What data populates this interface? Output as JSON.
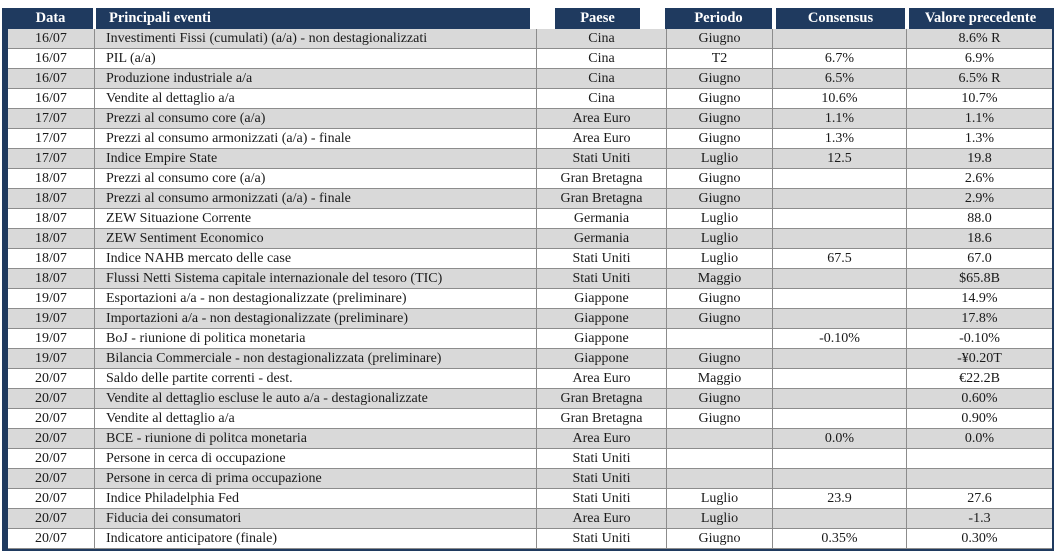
{
  "colors": {
    "header_bg": "#1F3A5F",
    "header_text": "#FFFFFF",
    "row_alt_bg": "#D9D9D9",
    "row_bg": "#FFFFFF",
    "grid_border": "#8C8C8C",
    "text": "#1A1A1A"
  },
  "table": {
    "columns": [
      "Data",
      "Principali eventi",
      "Paese",
      "Periodo",
      "Consensus",
      "Valore precedente"
    ],
    "rows": [
      {
        "date": "16/07",
        "event": "Investimenti Fissi (cumulati) (a/a) - non destagionalizzati",
        "country": "Cina",
        "period": "Giugno",
        "consensus": "",
        "previous": "8.6% R"
      },
      {
        "date": "16/07",
        "event": "PIL (a/a)",
        "country": "Cina",
        "period": "T2",
        "consensus": "6.7%",
        "previous": "6.9%"
      },
      {
        "date": "16/07",
        "event": "Produzione industriale a/a",
        "country": "Cina",
        "period": "Giugno",
        "consensus": "6.5%",
        "previous": "6.5% R"
      },
      {
        "date": "16/07",
        "event": "Vendite al dettaglio a/a",
        "country": "Cina",
        "period": "Giugno",
        "consensus": "10.6%",
        "previous": "10.7%"
      },
      {
        "date": "17/07",
        "event": "Prezzi al consumo core  (a/a)",
        "country": "Area Euro",
        "period": "Giugno",
        "consensus": "1.1%",
        "previous": "1.1%"
      },
      {
        "date": "17/07",
        "event": "Prezzi al consumo armonizzati (a/a) - finale",
        "country": "Area Euro",
        "period": "Giugno",
        "consensus": "1.3%",
        "previous": "1.3%"
      },
      {
        "date": "17/07",
        "event": "Indice Empire State",
        "country": "Stati Uniti",
        "period": "Luglio",
        "consensus": "12.5",
        "previous": "19.8"
      },
      {
        "date": "18/07",
        "event": "Prezzi al consumo core (a/a)",
        "country": "Gran Bretagna",
        "period": "Giugno",
        "consensus": "",
        "previous": "2.6%"
      },
      {
        "date": "18/07",
        "event": "Prezzi al consumo armonizzati (a/a) - finale",
        "country": "Gran Bretagna",
        "period": "Giugno",
        "consensus": "",
        "previous": "2.9%"
      },
      {
        "date": "18/07",
        "event": "ZEW Situazione Corrente",
        "country": "Germania",
        "period": "Luglio",
        "consensus": "",
        "previous": "88.0"
      },
      {
        "date": "18/07",
        "event": "ZEW Sentiment Economico",
        "country": "Germania",
        "period": "Luglio",
        "consensus": "",
        "previous": "18.6"
      },
      {
        "date": "18/07",
        "event": "Indice NAHB mercato delle case",
        "country": "Stati Uniti",
        "period": "Luglio",
        "consensus": "67.5",
        "previous": "67.0"
      },
      {
        "date": "18/07",
        "event": "Flussi Netti Sistema capitale internazionale del tesoro (TIC)",
        "country": "Stati Uniti",
        "period": "Maggio",
        "consensus": "",
        "previous": "$65.8B"
      },
      {
        "date": "19/07",
        "event": "Esportazioni a/a - non destagionalizzate (preliminare)",
        "country": "Giappone",
        "period": "Giugno",
        "consensus": "",
        "previous": "14.9%"
      },
      {
        "date": "19/07",
        "event": "Importazioni a/a - non destagionalizzate (preliminare)",
        "country": "Giappone",
        "period": "Giugno",
        "consensus": "",
        "previous": "17.8%"
      },
      {
        "date": "19/07",
        "event": "BoJ - riunione di politica monetaria",
        "country": "Giappone",
        "period": "",
        "consensus": "-0.10%",
        "previous": "-0.10%"
      },
      {
        "date": "19/07",
        "event": "Bilancia Commerciale -  non destagionalizzata (preliminare)",
        "country": "Giappone",
        "period": "Giugno",
        "consensus": "",
        "previous": "-¥0.20T"
      },
      {
        "date": "20/07",
        "event": "Saldo delle partite correnti - dest.",
        "country": "Area Euro",
        "period": "Maggio",
        "consensus": "",
        "previous": "€22.2B"
      },
      {
        "date": "20/07",
        "event": "Vendite al dettaglio escluse le auto a/a  - destagionalizzate",
        "country": "Gran Bretagna",
        "period": "Giugno",
        "consensus": "",
        "previous": "0.60%"
      },
      {
        "date": "20/07",
        "event": "Vendite al dettaglio a/a",
        "country": "Gran Bretagna",
        "period": "Giugno",
        "consensus": "",
        "previous": "0.90%"
      },
      {
        "date": "20/07",
        "event": "BCE - riunione di politca monetaria",
        "country": "Area Euro",
        "period": "",
        "consensus": "0.0%",
        "previous": "0.0%"
      },
      {
        "date": "20/07",
        "event": "Persone in cerca di occupazione",
        "country": "Stati Uniti",
        "period": "",
        "consensus": "",
        "previous": ""
      },
      {
        "date": "20/07",
        "event": "Persone in cerca di prima occupazione",
        "country": "Stati Uniti",
        "period": "",
        "consensus": "",
        "previous": ""
      },
      {
        "date": "20/07",
        "event": "Indice Philadelphia Fed",
        "country": "Stati Uniti",
        "period": "Luglio",
        "consensus": "23.9",
        "previous": "27.6"
      },
      {
        "date": "20/07",
        "event": "Fiducia dei consumatori",
        "country": "Area Euro",
        "period": "Luglio",
        "consensus": "",
        "previous": "-1.3"
      },
      {
        "date": "20/07",
        "event": "Indicatore anticipatore (finale)",
        "country": "Stati Uniti",
        "period": "Giugno",
        "consensus": "0.35%",
        "previous": "0.30%"
      }
    ]
  }
}
